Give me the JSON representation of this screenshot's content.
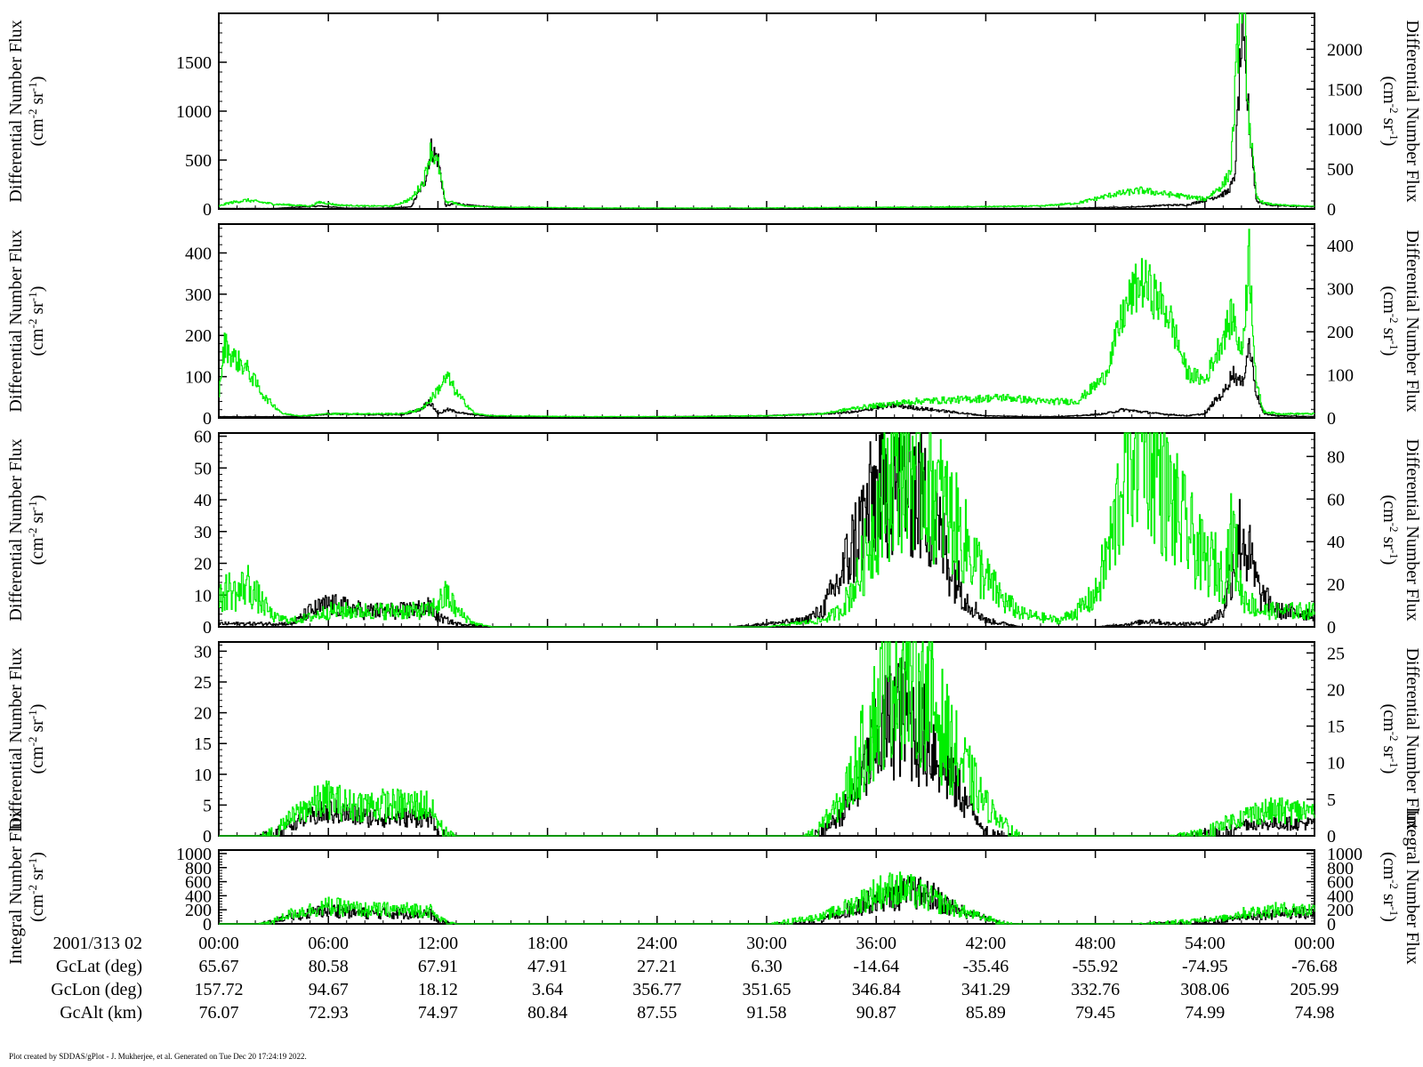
{
  "chart_data": [
    {
      "type": "line",
      "left_ylabel": "Differential Number Flux",
      "right_ylabel": "Differential Number Flux",
      "yunit_base": "(cm",
      "yunit_exp1": "-2",
      "yunit_mid": " sr",
      "yunit_exp2": "-1",
      "yunit_end": ")",
      "ylim_left": [
        0,
        2000
      ],
      "yticks_left": [
        0,
        500,
        1000,
        1500
      ],
      "ylim_right": [
        0,
        2450
      ],
      "yticks_right": [
        0,
        500,
        1000,
        1500,
        2000
      ],
      "series": [
        {
          "color": "#000000",
          "x": [
            0,
            3,
            5.5,
            7,
            9,
            10.5,
            11.3,
            11.6,
            12,
            12.4,
            13,
            13.5,
            16,
            20,
            25,
            30,
            40,
            45,
            47,
            50,
            52,
            53,
            54.5,
            55.2,
            55.6,
            56,
            56.4,
            56.8,
            57.5,
            60
          ],
          "y": [
            5,
            5,
            30,
            8,
            8,
            20,
            300,
            620,
            500,
            30,
            60,
            40,
            5,
            3,
            3,
            3,
            5,
            5,
            10,
            20,
            40,
            40,
            120,
            170,
            300,
            1800,
            900,
            80,
            40,
            20
          ]
        },
        {
          "color": "#00ee00",
          "x": [
            0,
            0.5,
            1.5,
            3,
            5,
            5.5,
            6.5,
            8,
            9.5,
            10.5,
            11.2,
            11.6,
            12,
            12.4,
            12.7,
            13,
            13.5,
            15,
            20,
            25,
            30,
            35,
            40,
            45,
            47,
            49,
            50.5,
            52,
            54,
            55,
            55.4,
            56,
            56.4,
            56.8,
            57.2,
            58,
            60
          ],
          "y": [
            30,
            60,
            90,
            50,
            30,
            70,
            40,
            30,
            30,
            100,
            280,
            610,
            450,
            60,
            80,
            50,
            30,
            20,
            10,
            10,
            10,
            15,
            20,
            30,
            60,
            150,
            190,
            150,
            100,
            250,
            400,
            2400,
            900,
            120,
            60,
            40,
            25
          ]
        }
      ]
    },
    {
      "type": "line",
      "left_ylabel": "Differential Number Flux",
      "right_ylabel": "Differential Number Flux",
      "yunit_base": "(cm",
      "yunit_exp1": "-2",
      "yunit_mid": " sr",
      "yunit_exp2": "-1",
      "yunit_end": ")",
      "ylim_left": [
        0,
        470
      ],
      "yticks_left": [
        0,
        100,
        200,
        300,
        400
      ],
      "ylim_right": [
        0,
        450
      ],
      "yticks_right": [
        0,
        100,
        200,
        300,
        400
      ],
      "series": [
        {
          "color": "#000000",
          "x": [
            0,
            4,
            5,
            6,
            8,
            10,
            11,
            11.5,
            12,
            12.5,
            13.5,
            15,
            20,
            25,
            30,
            33,
            35,
            36,
            37,
            38,
            40,
            42,
            45,
            47,
            48.5,
            49.5,
            50.5,
            51.5,
            53,
            54,
            54.5,
            55,
            55.5,
            56,
            56.4,
            56.8,
            57.2,
            58,
            60
          ],
          "y": [
            3,
            3,
            5,
            10,
            8,
            8,
            20,
            40,
            10,
            20,
            10,
            3,
            2,
            3,
            5,
            10,
            15,
            25,
            30,
            25,
            15,
            5,
            3,
            5,
            10,
            20,
            15,
            10,
            5,
            10,
            40,
            60,
            110,
            80,
            180,
            60,
            10,
            5,
            3
          ]
        },
        {
          "color": "#00ee00",
          "x": [
            0,
            0.3,
            0.7,
            1.5,
            2.5,
            3.5,
            4.5,
            6,
            8,
            10,
            11,
            11.5,
            12,
            12.5,
            13,
            14,
            15,
            20,
            25,
            30,
            33,
            35,
            38,
            41,
            43,
            45,
            47,
            48.5,
            49.5,
            50,
            50.5,
            51,
            52,
            53,
            54,
            55,
            55.5,
            56,
            56.4,
            56.8,
            57.2,
            58,
            60
          ],
          "y": [
            60,
            180,
            150,
            120,
            50,
            10,
            5,
            10,
            10,
            10,
            20,
            40,
            70,
            100,
            60,
            10,
            5,
            3,
            3,
            5,
            10,
            25,
            40,
            45,
            50,
            40,
            40,
            100,
            250,
            300,
            330,
            310,
            250,
            110,
            90,
            200,
            250,
            150,
            400,
            80,
            15,
            10,
            10
          ]
        }
      ]
    },
    {
      "type": "line",
      "left_ylabel": "Differential Number Flux",
      "right_ylabel": "Differential Number Flux",
      "yunit_base": "(cm",
      "yunit_exp1": "-2",
      "yunit_mid": " sr",
      "yunit_exp2": "-1",
      "yunit_end": ")",
      "ylim_left": [
        0,
        61
      ],
      "yticks_left": [
        0,
        10,
        20,
        30,
        40,
        50,
        60
      ],
      "ylim_right": [
        0,
        91
      ],
      "yticks_right": [
        0,
        20,
        40,
        60,
        80
      ],
      "series": [
        {
          "color": "#000000",
          "x": [
            0,
            2,
            4,
            5,
            6,
            8,
            10,
            11.5,
            12,
            13,
            15,
            20,
            25,
            28,
            30,
            32,
            33,
            34,
            35,
            36,
            37,
            38,
            39,
            40,
            41,
            42,
            44,
            48,
            50,
            51,
            52,
            54,
            55,
            55.5,
            56,
            57,
            58,
            60
          ],
          "y": [
            1,
            1,
            1,
            5,
            7,
            5,
            5,
            6,
            3,
            1,
            0,
            0,
            0,
            0,
            1,
            2,
            5,
            15,
            30,
            42,
            48,
            45,
            35,
            20,
            8,
            2,
            0,
            0,
            1,
            2,
            1,
            1,
            5,
            20,
            30,
            10,
            5,
            4
          ]
        },
        {
          "color": "#00ee00",
          "x": [
            0,
            0.5,
            1,
            1.5,
            2,
            3,
            4,
            5,
            6,
            8,
            10,
            11.5,
            12.5,
            13,
            14,
            15,
            20,
            25,
            30,
            33,
            34,
            35,
            36,
            37,
            38,
            39,
            40,
            41,
            42,
            43,
            44,
            46,
            47,
            48,
            49,
            49.5,
            50,
            50.5,
            51,
            52,
            53,
            54,
            54.5,
            55,
            55.5,
            56,
            57,
            58,
            60
          ],
          "y": [
            8,
            12,
            10,
            14,
            10,
            3,
            2,
            3,
            5,
            5,
            5,
            5,
            10,
            5,
            1,
            0,
            0,
            0,
            0,
            2,
            5,
            15,
            35,
            50,
            52,
            45,
            35,
            25,
            15,
            8,
            4,
            2,
            5,
            10,
            30,
            50,
            60,
            70,
            60,
            40,
            30,
            20,
            20,
            15,
            30,
            10,
            5,
            5,
            5
          ]
        }
      ]
    },
    {
      "type": "line",
      "left_ylabel": "Differential Number Flux",
      "right_ylabel": "Differential Number Flux",
      "yunit_base": "(cm",
      "yunit_exp1": "-2",
      "yunit_mid": " sr",
      "yunit_exp2": "-1",
      "yunit_end": ")",
      "ylim_left": [
        0,
        31.5
      ],
      "yticks_left": [
        0,
        5,
        10,
        15,
        20,
        25,
        30
      ],
      "ylim_right": [
        0,
        26.5
      ],
      "yticks_right": [
        0,
        5,
        10,
        15,
        20,
        25
      ],
      "series": [
        {
          "color": "#000000",
          "x": [
            0,
            2,
            3,
            4,
            5,
            6,
            8,
            10,
            11.5,
            12,
            13,
            15,
            20,
            30,
            32,
            33,
            34,
            35,
            36,
            37,
            38,
            39,
            40,
            41,
            42,
            44,
            48,
            52,
            55,
            56,
            57,
            58,
            60
          ],
          "y": [
            0,
            0,
            1,
            2,
            3,
            4,
            3,
            3,
            3,
            1,
            0,
            0,
            0,
            0,
            0,
            1,
            3,
            8,
            15,
            20,
            18,
            15,
            10,
            5,
            1,
            0,
            0,
            0,
            1,
            2,
            2,
            2,
            2
          ]
        },
        {
          "color": "#00ee00",
          "x": [
            0,
            2,
            3,
            4,
            5,
            6,
            7,
            8,
            10,
            11.5,
            12,
            13,
            15,
            20,
            30,
            32,
            33,
            34,
            35,
            36,
            37,
            38,
            39,
            40,
            41,
            42,
            43,
            44,
            48,
            52,
            54,
            55,
            56,
            57,
            58,
            59,
            60
          ],
          "y": [
            0,
            0,
            1,
            3,
            5,
            6,
            5,
            5,
            5,
            5,
            2,
            0,
            0,
            0,
            0,
            0,
            2,
            5,
            12,
            20,
            28,
            26,
            22,
            15,
            10,
            5,
            2,
            0,
            0,
            0,
            1,
            2,
            3,
            4,
            4,
            4,
            4
          ]
        }
      ]
    },
    {
      "type": "line",
      "left_ylabel": "Integral Number Flux",
      "right_ylabel": "Integral Number Flux",
      "yunit_base": "(cm",
      "yunit_exp1": "-2",
      "yunit_mid": " sr",
      "yunit_exp2": "-1",
      "yunit_end": ")",
      "ylim_left": [
        0,
        1050
      ],
      "yticks_left": [
        0,
        200,
        400,
        600,
        800,
        1000
      ],
      "ylim_right": [
        0,
        1050
      ],
      "yticks_right": [
        0,
        200,
        400,
        600,
        800,
        1000
      ],
      "series": [
        {
          "color": "#000000",
          "x": [
            0,
            2,
            3,
            4,
            5,
            6,
            8,
            10,
            11.5,
            12,
            13,
            15,
            20,
            30,
            33,
            34,
            35,
            36,
            37,
            38,
            39,
            40,
            41,
            42,
            43,
            50,
            55,
            56,
            58,
            60
          ],
          "y": [
            0,
            0,
            50,
            100,
            150,
            200,
            150,
            150,
            150,
            50,
            0,
            0,
            0,
            0,
            50,
            150,
            250,
            350,
            400,
            450,
            400,
            250,
            150,
            80,
            0,
            0,
            50,
            100,
            150,
            150
          ]
        },
        {
          "color": "#00ee00",
          "x": [
            0,
            2,
            3,
            4,
            5,
            6,
            8,
            10,
            11.5,
            12,
            13,
            15,
            20,
            30,
            31,
            33,
            34,
            35,
            36,
            37,
            38,
            39,
            40,
            41,
            42,
            43,
            44,
            50,
            55,
            56,
            58,
            60
          ],
          "y": [
            0,
            0,
            50,
            150,
            200,
            250,
            200,
            200,
            200,
            80,
            0,
            0,
            0,
            0,
            40,
            100,
            200,
            300,
            450,
            500,
            450,
            350,
            250,
            150,
            80,
            30,
            0,
            0,
            80,
            150,
            200,
            200
          ]
        }
      ]
    }
  ],
  "xaxis": {
    "xlim": [
      0,
      60
    ],
    "x_values": [
      0,
      6,
      12,
      18,
      24,
      30,
      36,
      42,
      48,
      54,
      60
    ],
    "rows": [
      {
        "label": "2001/313 02",
        "values": [
          "00:00",
          "06:00",
          "12:00",
          "18:00",
          "24:00",
          "30:00",
          "36:00",
          "42:00",
          "48:00",
          "54:00",
          "00:00"
        ]
      },
      {
        "label": "GcLat (deg)",
        "values": [
          "65.67",
          "80.58",
          "67.91",
          "47.91",
          "27.21",
          "6.30",
          "-14.64",
          "-35.46",
          "-55.92",
          "-74.95",
          "-76.68"
        ]
      },
      {
        "label": "GcLon (deg)",
        "values": [
          "157.72",
          "94.67",
          "18.12",
          "3.64",
          "356.77",
          "351.65",
          "346.84",
          "341.29",
          "332.76",
          "308.06",
          "205.99"
        ]
      },
      {
        "label": "GcAlt (km)",
        "values": [
          "76.07",
          "72.93",
          "74.97",
          "80.84",
          "87.55",
          "91.58",
          "90.87",
          "85.89",
          "79.45",
          "74.99",
          "74.98"
        ]
      }
    ]
  },
  "footer": "Plot created by SDDAS/gPlot - J. Mukherjee, et al.  Generated on Tue Dec 20 17:24:19 2022."
}
